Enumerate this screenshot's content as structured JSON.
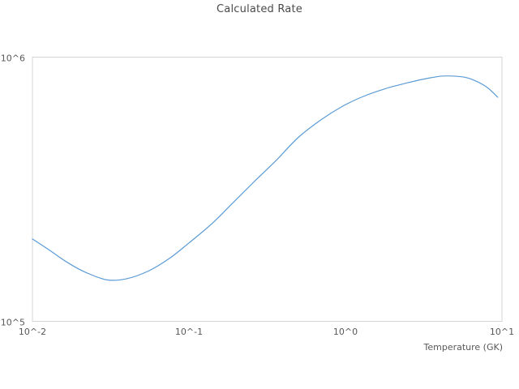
{
  "chart_data": {
    "type": "line",
    "title": "Calculated Rate",
    "xlabel": "Temperature (GK)",
    "ylabel": "",
    "x_scale": "log",
    "y_scale": "log",
    "xlim": [
      0.01,
      10
    ],
    "ylim": [
      100000,
      1000000
    ],
    "grid": false,
    "legend": false,
    "background": "#ffffff",
    "border_color": "#d4d4d4",
    "line_color": "#5b9bd5",
    "x_ticks": [
      {
        "value": 0.01,
        "label": "10^-2"
      },
      {
        "value": 0.1,
        "label": "10^-1"
      },
      {
        "value": 1,
        "label": "10^0"
      },
      {
        "value": 10,
        "label": "10^1"
      }
    ],
    "y_ticks": [
      {
        "value": 100000,
        "label": "10^5"
      },
      {
        "value": 1000000,
        "label": "10^6"
      }
    ],
    "series": [
      {
        "name": "calculated-rate",
        "x": [
          0.01,
          0.013,
          0.017,
          0.022,
          0.03,
          0.04,
          0.055,
          0.075,
          0.1,
          0.14,
          0.19,
          0.26,
          0.36,
          0.5,
          0.7,
          0.95,
          1.3,
          1.8,
          2.5,
          3.3,
          4.2,
          5.5,
          6.5,
          8.0,
          9.4
        ],
        "y": [
          205000,
          185000,
          166000,
          153000,
          143500,
          145000,
          155000,
          173000,
          198000,
          234000,
          280000,
          337000,
          406000,
          497000,
          580000,
          650000,
          710000,
          760000,
          800000,
          830000,
          848000,
          843000,
          822000,
          770000,
          705000
        ]
      }
    ]
  }
}
